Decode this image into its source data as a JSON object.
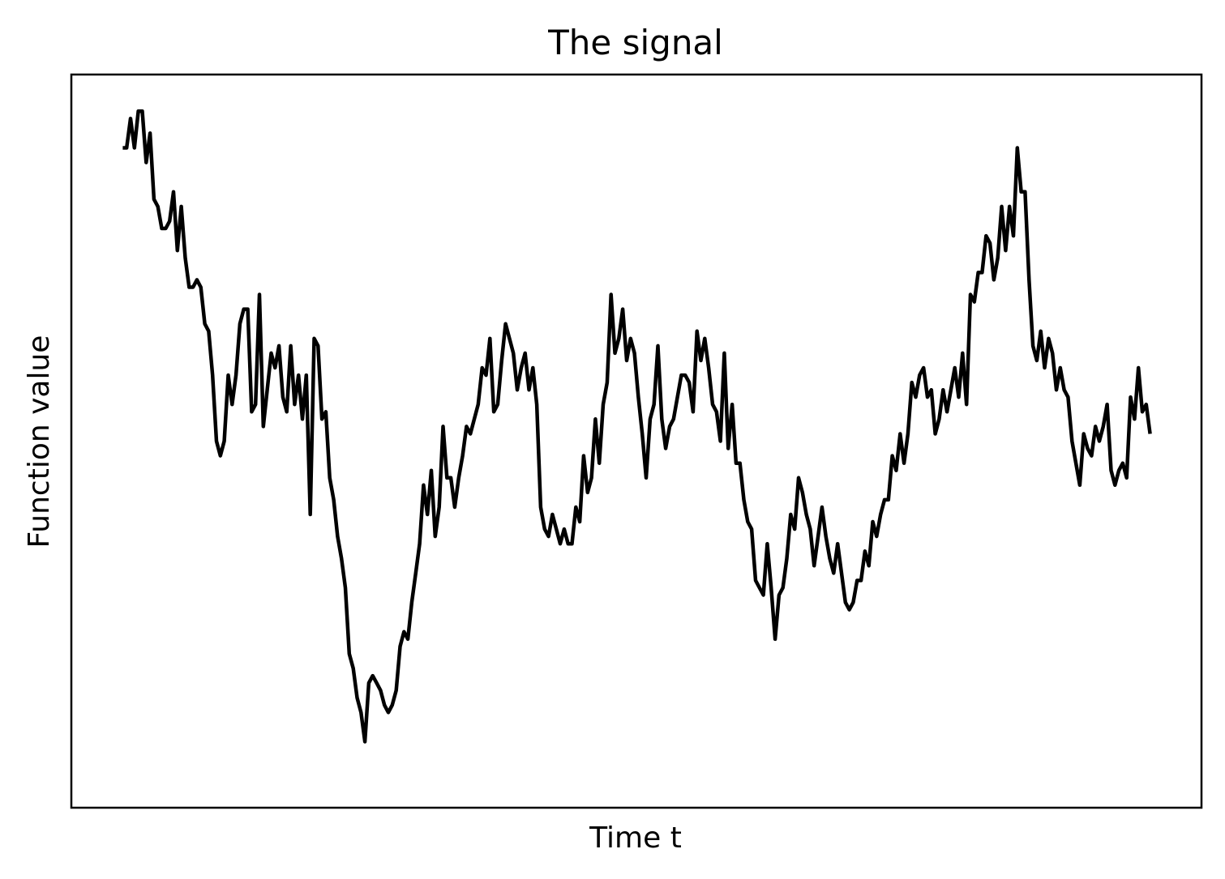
{
  "chart_data": {
    "type": "line",
    "title": "The signal",
    "xlabel": "Time t",
    "ylabel": "Function value",
    "xticks": [],
    "yticks": [],
    "grid": false,
    "legend": "none",
    "colors": {
      "line": "#000000",
      "frame": "#000000",
      "background": "#ffffff"
    },
    "xlim": [
      -0.05,
      1.05
    ],
    "ylim": [
      0.0,
      1.0
    ],
    "series": [
      {
        "values": [
          0.9,
          0.9,
          0.94,
          0.9,
          0.95,
          0.95,
          0.88,
          0.92,
          0.83,
          0.82,
          0.79,
          0.79,
          0.8,
          0.84,
          0.76,
          0.82,
          0.75,
          0.71,
          0.71,
          0.72,
          0.71,
          0.66,
          0.65,
          0.59,
          0.5,
          0.48,
          0.5,
          0.59,
          0.55,
          0.59,
          0.66,
          0.68,
          0.68,
          0.54,
          0.55,
          0.7,
          0.52,
          0.57,
          0.62,
          0.6,
          0.63,
          0.56,
          0.54,
          0.63,
          0.55,
          0.59,
          0.53,
          0.59,
          0.4,
          0.64,
          0.63,
          0.53,
          0.54,
          0.45,
          0.42,
          0.37,
          0.34,
          0.3,
          0.21,
          0.19,
          0.15,
          0.13,
          0.09,
          0.17,
          0.18,
          0.17,
          0.16,
          0.14,
          0.13,
          0.14,
          0.16,
          0.22,
          0.24,
          0.23,
          0.28,
          0.32,
          0.36,
          0.44,
          0.4,
          0.46,
          0.37,
          0.41,
          0.52,
          0.45,
          0.45,
          0.41,
          0.45,
          0.48,
          0.52,
          0.51,
          0.53,
          0.55,
          0.6,
          0.59,
          0.64,
          0.54,
          0.55,
          0.61,
          0.66,
          0.64,
          0.62,
          0.57,
          0.6,
          0.62,
          0.57,
          0.6,
          0.55,
          0.41,
          0.38,
          0.37,
          0.4,
          0.38,
          0.36,
          0.38,
          0.36,
          0.36,
          0.41,
          0.39,
          0.48,
          0.43,
          0.45,
          0.53,
          0.47,
          0.55,
          0.58,
          0.7,
          0.62,
          0.64,
          0.68,
          0.61,
          0.64,
          0.62,
          0.56,
          0.51,
          0.45,
          0.53,
          0.55,
          0.63,
          0.53,
          0.49,
          0.52,
          0.53,
          0.56,
          0.59,
          0.59,
          0.58,
          0.54,
          0.65,
          0.61,
          0.64,
          0.6,
          0.55,
          0.54,
          0.5,
          0.62,
          0.49,
          0.55,
          0.47,
          0.47,
          0.42,
          0.39,
          0.38,
          0.31,
          0.3,
          0.29,
          0.36,
          0.3,
          0.23,
          0.29,
          0.3,
          0.34,
          0.4,
          0.38,
          0.45,
          0.43,
          0.4,
          0.38,
          0.33,
          0.37,
          0.41,
          0.37,
          0.34,
          0.32,
          0.36,
          0.32,
          0.28,
          0.27,
          0.28,
          0.31,
          0.31,
          0.35,
          0.33,
          0.39,
          0.37,
          0.4,
          0.42,
          0.42,
          0.48,
          0.46,
          0.51,
          0.47,
          0.51,
          0.58,
          0.56,
          0.59,
          0.6,
          0.56,
          0.57,
          0.51,
          0.53,
          0.57,
          0.54,
          0.57,
          0.6,
          0.56,
          0.62,
          0.55,
          0.7,
          0.69,
          0.73,
          0.73,
          0.78,
          0.77,
          0.72,
          0.75,
          0.82,
          0.76,
          0.82,
          0.78,
          0.9,
          0.84,
          0.84,
          0.72,
          0.63,
          0.61,
          0.65,
          0.6,
          0.64,
          0.62,
          0.57,
          0.6,
          0.57,
          0.56,
          0.5,
          0.47,
          0.44,
          0.51,
          0.49,
          0.48,
          0.52,
          0.5,
          0.52,
          0.55,
          0.46,
          0.44,
          0.46,
          0.47,
          0.45,
          0.56,
          0.53,
          0.6,
          0.54,
          0.55,
          0.51
        ]
      }
    ]
  }
}
